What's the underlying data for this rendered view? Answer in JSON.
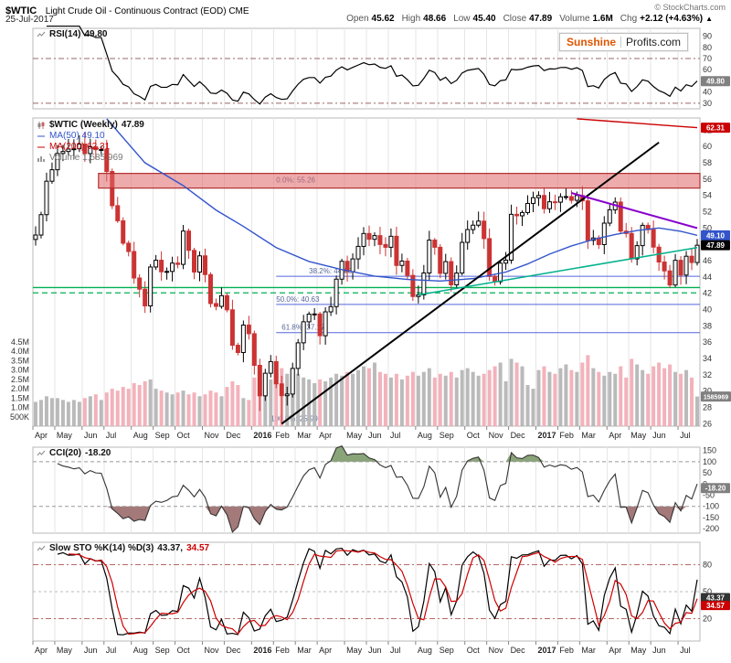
{
  "header": {
    "symbol": "$WTIC",
    "title": "Light Crude Oil - Continuous Contract (EOD) CME",
    "copyright": "© StockCharts.com",
    "date": "25-Jul-2017",
    "quote": [
      {
        "label": "Open",
        "value": "45.62"
      },
      {
        "label": "High",
        "value": "48.66"
      },
      {
        "label": "Low",
        "value": "45.40"
      },
      {
        "label": "Close",
        "value": "47.89"
      },
      {
        "label": "Volume",
        "value": "1.6M"
      },
      {
        "label": "Chg",
        "value": "+2.12 (+4.63%)"
      }
    ],
    "direction_arrow": "▲"
  },
  "logo": {
    "first": "Sunshine",
    "second": "Profits.com"
  },
  "panels_text": {
    "rsi_label": "RSI(14)",
    "rsi_value": "49.80",
    "main_label": "$WTIC (Weekly)",
    "main_value": "47.89",
    "ma50_label": "MA(50) 49.10",
    "ma200_label": "MA(200) 62.31",
    "volume_label": "Volume 1,585,969",
    "cci_label": "CCI(20)",
    "cci_value": "-18.20",
    "sto_label": "Slow STO %K(14) %D(3)",
    "sto_k_value": "43.37,",
    "sto_d_value": "34.57"
  },
  "chart_data": {
    "type": "candlestick",
    "symbol": "$WTIC (Weekly)",
    "timeframe": "weekly",
    "weeks": 122,
    "first_open": 48.6,
    "x_months": [
      {
        "label": "Apr",
        "week": 0,
        "bold": false
      },
      {
        "label": "May",
        "week": 4,
        "bold": false
      },
      {
        "label": "Jun",
        "week": 9,
        "bold": false
      },
      {
        "label": "Jul",
        "week": 13,
        "bold": false
      },
      {
        "label": "Aug",
        "week": 18,
        "bold": false
      },
      {
        "label": "Sep",
        "week": 22,
        "bold": false
      },
      {
        "label": "Oct",
        "week": 26,
        "bold": false
      },
      {
        "label": "Nov",
        "week": 31,
        "bold": false
      },
      {
        "label": "Dec",
        "week": 35,
        "bold": false
      },
      {
        "label": "2016",
        "week": 40,
        "bold": true
      },
      {
        "label": "Feb",
        "week": 44,
        "bold": false
      },
      {
        "label": "Mar",
        "week": 48,
        "bold": false
      },
      {
        "label": "Apr",
        "week": 52,
        "bold": false
      },
      {
        "label": "May",
        "week": 57,
        "bold": false
      },
      {
        "label": "Jun",
        "week": 61,
        "bold": false
      },
      {
        "label": "Jul",
        "week": 65,
        "bold": false
      },
      {
        "label": "Aug",
        "week": 70,
        "bold": false
      },
      {
        "label": "Sep",
        "week": 74,
        "bold": false
      },
      {
        "label": "Oct",
        "week": 79,
        "bold": false
      },
      {
        "label": "Nov",
        "week": 83,
        "bold": false
      },
      {
        "label": "Dec",
        "week": 87,
        "bold": false
      },
      {
        "label": "2017",
        "week": 92,
        "bold": true
      },
      {
        "label": "Feb",
        "week": 96,
        "bold": false
      },
      {
        "label": "Mar",
        "week": 100,
        "bold": false
      },
      {
        "label": "Apr",
        "week": 105,
        "bold": false
      },
      {
        "label": "May",
        "week": 109,
        "bold": false
      },
      {
        "label": "Jun",
        "week": 113,
        "bold": false
      },
      {
        "label": "Jul",
        "week": 118,
        "bold": false
      }
    ],
    "close": [
      49.14,
      51.64,
      55.74,
      57.15,
      59.15,
      59.39,
      59.69,
      59.72,
      60.3,
      59.13,
      59.96,
      59.61,
      59.63,
      56.93,
      52.74,
      50.89,
      48.14,
      47.12,
      43.87,
      42.5,
      40.45,
      45.22,
      46.05,
      44.63,
      44.68,
      45.7,
      45.54,
      49.63,
      47.26,
      44.6,
      46.59,
      44.29,
      40.74,
      40.39,
      41.71,
      39.97,
      35.62,
      34.73,
      38.1,
      37.04,
      33.16,
      29.42,
      32.19,
      33.62,
      30.89,
      29.44,
      29.64,
      32.78,
      35.92,
      38.5,
      39.44,
      39.46,
      36.79,
      39.72,
      40.36,
      43.73,
      45.92,
      44.66,
      46.21,
      47.75,
      49.33,
      48.62,
      49.07,
      47.98,
      47.64,
      48.99,
      45.41,
      45.95,
      44.19,
      41.6,
      41.8,
      44.49,
      48.52,
      47.64,
      44.44,
      45.88,
      43.03,
      44.48,
      48.24,
      49.81,
      50.35,
      50.85,
      48.7,
      44.07,
      43.41,
      45.69,
      46.06,
      51.68,
      51.5,
      51.9,
      53.02,
      53.72,
      53.99,
      52.37,
      53.22,
      53.17,
      53.83,
      53.86,
      53.4,
      53.99,
      53.33,
      48.49,
      48.78,
      47.97,
      50.6,
      52.24,
      53.18,
      49.62,
      49.33,
      46.22,
      47.84,
      50.33,
      49.8,
      47.66,
      45.83,
      44.74,
      43.01,
      46.04,
      44.23,
      46.54,
      45.77,
      47.89
    ],
    "volume_m": [
      1.3,
      1.4,
      1.6,
      1.5,
      1.5,
      1.4,
      1.3,
      1.4,
      1.3,
      1.5,
      1.6,
      1.7,
      1.4,
      1.8,
      2.0,
      1.9,
      2.1,
      2.0,
      2.3,
      2.2,
      2.4,
      2.5,
      2.0,
      1.9,
      1.8,
      1.7,
      1.8,
      1.9,
      1.7,
      1.8,
      1.6,
      1.7,
      1.9,
      1.8,
      1.6,
      2.1,
      2.4,
      2.2,
      1.5,
      1.4,
      2.6,
      2.8,
      2.7,
      2.5,
      2.9,
      3.1,
      2.8,
      2.7,
      2.8,
      2.6,
      2.5,
      2.3,
      2.5,
      2.4,
      2.6,
      2.8,
      2.7,
      2.9,
      2.8,
      3.0,
      3.2,
      3.1,
      3.4,
      2.9,
      2.8,
      2.6,
      2.8,
      2.5,
      2.7,
      2.9,
      2.7,
      2.9,
      3.1,
      2.6,
      2.8,
      2.7,
      2.9,
      2.6,
      3.0,
      3.1,
      2.9,
      2.7,
      2.8,
      3.0,
      3.2,
      3.4,
      2.4,
      3.6,
      3.4,
      3.2,
      2.2,
      2.0,
      3.0,
      3.2,
      2.9,
      2.8,
      3.1,
      3.3,
      3.0,
      2.9,
      3.4,
      3.8,
      3.1,
      2.9,
      2.7,
      2.9,
      2.8,
      3.2,
      2.6,
      3.6,
      3.3,
      3.0,
      2.8,
      3.2,
      3.4,
      3.1,
      3.3,
      2.9,
      2.8,
      3.0,
      2.6,
      1.586
    ],
    "wick_highs": {
      "9": 61.8,
      "121": 48.66
    },
    "wick_lows": {
      "41": 27.56,
      "45": 26.05,
      "121": 45.4
    },
    "price_axis": {
      "ticks": [
        62,
        60,
        58,
        56,
        54,
        52,
        50,
        48,
        46,
        44,
        42,
        40,
        38,
        36,
        34,
        32,
        30,
        28,
        26
      ],
      "domain": [
        25.7,
        63.5
      ]
    },
    "volume_axis": {
      "max_m": 4.5,
      "ticks": [
        [
          "4.5M",
          4.5
        ],
        [
          "4.0M",
          4.0
        ],
        [
          "3.5M",
          3.5
        ],
        [
          "3.0M",
          3.0
        ],
        [
          "2.5M",
          2.5
        ],
        [
          "2.0M",
          2.0
        ],
        [
          "1.5M",
          1.5
        ],
        [
          "1.0M",
          1.0
        ],
        [
          "500K",
          0.5
        ]
      ]
    },
    "candle_colors": {
      "up_fill": "#ffffff",
      "up_border": "#000000",
      "down_fill": "#cc3333",
      "down_border": "#cc3333"
    },
    "volume_colors": {
      "up": "#b3b3b3",
      "down": "#f2aab4"
    },
    "overlays": {
      "ma50": {
        "color": "#3355cc",
        "last": 49.1,
        "anchors": [
          [
            13,
            63.4
          ],
          [
            20,
            58.0
          ],
          [
            27,
            55.2
          ],
          [
            33,
            52.2
          ],
          [
            38,
            50.2
          ],
          [
            44,
            47.6
          ],
          [
            50,
            45.9
          ],
          [
            56,
            44.9
          ],
          [
            62,
            44.1
          ],
          [
            68,
            43.7
          ],
          [
            74,
            43.5
          ],
          [
            80,
            43.8
          ],
          [
            86,
            44.6
          ],
          [
            90,
            45.6
          ],
          [
            94,
            46.8
          ],
          [
            98,
            47.8
          ],
          [
            102,
            48.6
          ],
          [
            106,
            49.2
          ],
          [
            110,
            49.7
          ],
          [
            114,
            50.0
          ],
          [
            118,
            49.6
          ],
          [
            121,
            49.1
          ]
        ]
      },
      "ma200": {
        "color": "#cc0000",
        "last": 62.31,
        "anchors": [
          [
            99,
            63.4
          ],
          [
            104,
            63.15
          ],
          [
            109,
            62.9
          ],
          [
            114,
            62.65
          ],
          [
            118,
            62.45
          ],
          [
            121,
            62.31
          ]
        ]
      },
      "resistance_zone": {
        "from_week": 12,
        "price_low": 54.9,
        "price_high": 56.7,
        "fill": "#e06666",
        "border": "#b03030"
      },
      "trendlines": [
        {
          "name": "rising-black",
          "color": "#000000",
          "from": [
            45,
            25.99
          ],
          "to": [
            114,
            60.5
          ],
          "width": 2
        },
        {
          "name": "declining-purple",
          "color": "#8800cc",
          "from": [
            98,
            54.3
          ],
          "to": [
            121,
            50.0
          ],
          "width": 2
        },
        {
          "name": "rising-teal",
          "color": "#00b08c",
          "from": [
            70,
            41.8
          ],
          "to": [
            121,
            47.6
          ],
          "width": 1.5
        }
      ],
      "horizontal_lines": [
        {
          "name": "support-green-solid",
          "color": "#00b050",
          "price": 42.7,
          "dash": "none"
        },
        {
          "name": "support-green-dashed",
          "color": "#00b050",
          "price": 42.05,
          "dash": "6 4"
        }
      ],
      "fibonacci": {
        "color": "#5566dd",
        "levels": [
          {
            "label": "0.0%: 55.26",
            "price": 55.26,
            "label_week": 44,
            "line": false,
            "from_week": 44
          },
          {
            "label": "38.2%: 44.08",
            "price": 44.08,
            "label_week": 50,
            "line": true,
            "from_week": 44
          },
          {
            "label": "50.0%: 40.63",
            "price": 40.63,
            "label_week": 44,
            "line": true,
            "from_week": 44
          },
          {
            "label": "61.8%: 37.17",
            "price": 37.17,
            "label_week": 45,
            "line": true,
            "from_week": 44
          },
          {
            "label": "100.0%: 25.99",
            "price": 25.99,
            "label_week": 43,
            "line": false,
            "from_week": 44
          }
        ]
      },
      "price_boxes": [
        {
          "text": "62.31",
          "price": 62.31,
          "bg": "#cc0000"
        },
        {
          "text": "49.10",
          "price": 49.1,
          "bg": "#3355cc"
        },
        {
          "text": "47.89",
          "price": 47.89,
          "bg": "#000000"
        }
      ],
      "volume_box": {
        "text": "1585969",
        "value_m": 1.586,
        "bg": "#808080"
      }
    },
    "indicators": {
      "rsi": {
        "period": 14,
        "value": 49.8,
        "value_text": "49.80",
        "ticks": [
          90,
          80,
          70,
          60,
          50,
          40,
          30
        ],
        "lines": [
          70,
          30
        ],
        "domain": [
          25,
          97
        ],
        "box_bg": "#808080",
        "line_color": "#000000"
      },
      "cci": {
        "period": 20,
        "value": -18.2,
        "value_text": "-18.20",
        "ticks": [
          150,
          100,
          50,
          0,
          -50,
          -100,
          -150,
          -200
        ],
        "bands": [
          100,
          -100
        ],
        "domain": [
          -220,
          165
        ],
        "box_bg": "#808080",
        "line_color": "#333333",
        "shade_above": "#7d9a6a",
        "shade_below": "#9a6a6a"
      },
      "sto": {
        "k_period": 14,
        "d_period": 3,
        "k_value": 43.37,
        "d_value": 34.57,
        "k_text": "43.37",
        "d_text": "34.57",
        "ticks": [
          80,
          50,
          20
        ],
        "bands": [
          80,
          20
        ],
        "mid": 50,
        "domain": [
          -5,
          105
        ],
        "k_color": "#000000",
        "d_color": "#cc0000",
        "k_box_bg": "#333333",
        "d_box_bg": "#cc0000"
      }
    }
  }
}
